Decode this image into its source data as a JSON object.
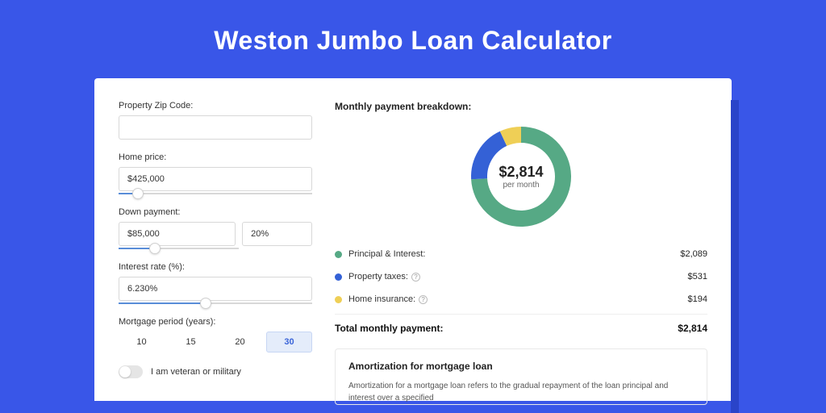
{
  "page": {
    "title": "Weston Jumbo Loan Calculator",
    "background_color": "#3956e8",
    "card_background": "#ffffff"
  },
  "form": {
    "zip": {
      "label": "Property Zip Code:",
      "value": ""
    },
    "home_price": {
      "label": "Home price:",
      "value": "$425,000",
      "slider_pct": 10
    },
    "down_payment": {
      "label": "Down payment:",
      "value": "$85,000",
      "pct_value": "20%",
      "slider_pct": 30
    },
    "interest": {
      "label": "Interest rate (%):",
      "value": "6.230%",
      "slider_pct": 45
    },
    "period": {
      "label": "Mortgage period (years):",
      "options": [
        "10",
        "15",
        "20",
        "30"
      ],
      "selected": "30"
    },
    "veteran": {
      "label": "I am veteran or military",
      "checked": false
    }
  },
  "breakdown": {
    "title": "Monthly payment breakdown:",
    "donut": {
      "center_amount": "$2,814",
      "center_sub": "per month",
      "segments": [
        {
          "label": "Principal & Interest",
          "value": 2089,
          "color": "#56a985",
          "start": 0,
          "sweep": 267
        },
        {
          "label": "Property taxes",
          "value": 531,
          "color": "#3461d6",
          "start": 267,
          "sweep": 68
        },
        {
          "label": "Home insurance",
          "value": 194,
          "color": "#efcf56",
          "start": 335,
          "sweep": 25
        }
      ],
      "stroke_width": 20,
      "radius": 52
    },
    "rows": [
      {
        "dot_color": "#56a985",
        "label": "Principal & Interest:",
        "info": false,
        "amount": "$2,089"
      },
      {
        "dot_color": "#3461d6",
        "label": "Property taxes:",
        "info": true,
        "amount": "$531"
      },
      {
        "dot_color": "#efcf56",
        "label": "Home insurance:",
        "info": true,
        "amount": "$194"
      }
    ],
    "total": {
      "label": "Total monthly payment:",
      "amount": "$2,814"
    }
  },
  "amortization": {
    "title": "Amortization for mortgage loan",
    "text": "Amortization for a mortgage loan refers to the gradual repayment of the loan principal and interest over a specified"
  }
}
